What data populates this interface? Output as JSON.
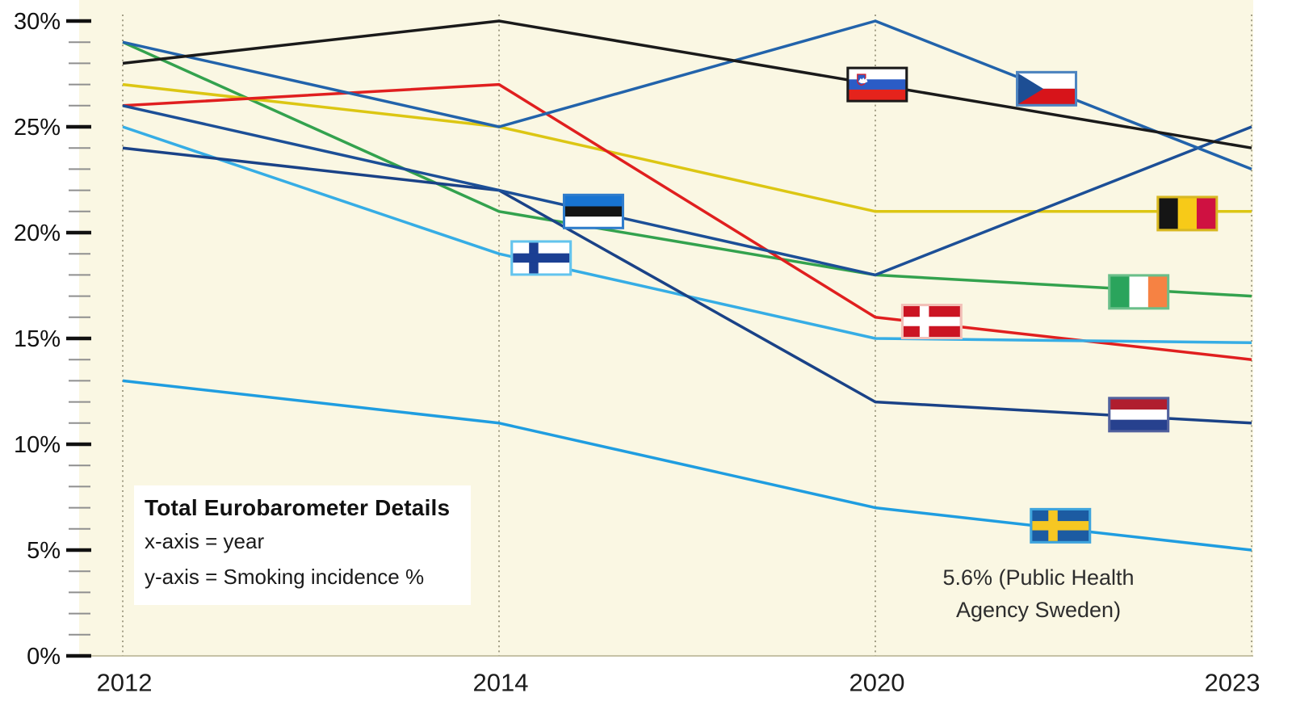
{
  "title_block": {
    "title": "Total Eurobarometer Details",
    "line1": "x-axis = year",
    "line2": "y-axis = Smoking incidence %"
  },
  "annotation": {
    "line1": "5.6% (Public Health",
    "line2": "Agency Sweden)"
  },
  "chart_data": {
    "type": "line",
    "title": "Total Eurobarometer Details",
    "xlabel": "year",
    "ylabel": "Smoking incidence %",
    "categories": [
      "2012",
      "2014",
      "2020",
      "2023"
    ],
    "y_tick_labels": [
      "0%",
      "5%",
      "10%",
      "15%",
      "20%",
      "25%",
      "30%"
    ],
    "y_major_ticks": [
      0,
      5,
      10,
      15,
      20,
      25,
      30
    ],
    "minor_tick_step": 1,
    "ylim": [
      0,
      30
    ],
    "grid": "vertical dotted line at each year",
    "legend": "flag markers on each series",
    "background_color": "#FAF7E3",
    "annotation_text": "5.6% (Public Health Agency Sweden)",
    "series": [
      {
        "name": "Ireland",
        "color": "#33a24e",
        "values": [
          29,
          21,
          18,
          17
        ],
        "flag": {
          "type": "v3",
          "colors": [
            "#2aa45c",
            "#ffffff",
            "#f68243"
          ],
          "border": "#6abf8a",
          "x": 2.7,
          "y": 17.2
        }
      },
      {
        "name": "Belgium",
        "color": "#dcc613",
        "values": [
          27,
          25,
          21,
          21
        ],
        "flag": {
          "type": "v3",
          "colors": [
            "#151515",
            "#f7ca18",
            "#cf1141"
          ],
          "border": "#d8b822",
          "x": 2.829,
          "y": 20.9
        }
      },
      {
        "name": "Denmark",
        "color": "#e01f1f",
        "values": [
          26,
          27,
          16,
          14
        ],
        "flag": {
          "type": "nordic",
          "colors": [
            "#cb1423",
            "#ffffff"
          ],
          "border": "#f2c0b8",
          "x": 2.15,
          "y": 15.8
        }
      },
      {
        "name": "Finland",
        "color": "#36ade5",
        "values": [
          25,
          19,
          15,
          14.8
        ],
        "flag": {
          "type": "nordic",
          "colors": [
            "#ffffff",
            "#1b3f93"
          ],
          "border": "#63c4ee",
          "x": 1.112,
          "y": 18.8
        }
      },
      {
        "name": "Netherlands",
        "color": "#1a4287",
        "values": [
          24,
          22,
          12,
          11
        ],
        "flag": {
          "type": "h3",
          "colors": [
            "#b01e2e",
            "#ffffff",
            "#27418e"
          ],
          "border": "#51619e",
          "x": 2.7,
          "y": 11.4
        }
      },
      {
        "name": "Estonia",
        "color": "#1c4f97",
        "values": [
          26,
          22,
          18,
          25
        ],
        "flag": {
          "type": "h3",
          "colors": [
            "#1874d2",
            "#151515",
            "#ffffff"
          ],
          "border": "#2e7ccc",
          "x": 1.251,
          "y": 21.0
        }
      },
      {
        "name": "Czechia",
        "color": "#2263ab",
        "values": [
          29,
          25,
          30,
          23
        ],
        "flag": {
          "type": "czech",
          "colors": [
            "#ffffff",
            "#d7141a",
            "#1d4e94"
          ],
          "border": "#4d84c0",
          "x": 2.455,
          "y": 26.8
        }
      },
      {
        "name": "Sweden",
        "color": "#1f9de0",
        "values": [
          13,
          11,
          7,
          5
        ],
        "flag": {
          "type": "nordic",
          "colors": [
            "#1c5ba2",
            "#f6c722"
          ],
          "border": "#3ea4dd",
          "x": 2.492,
          "y": 6.15
        }
      },
      {
        "name": "Slovenia",
        "color": "#1a1a1a",
        "values": [
          28,
          30,
          27,
          24
        ],
        "flag": {
          "type": "h3",
          "colors": [
            "#ffffff",
            "#2b5cc6",
            "#e5231c"
          ],
          "border": "#1a1a1a",
          "shield": true,
          "x": 2.005,
          "y": 27.0
        }
      }
    ]
  }
}
